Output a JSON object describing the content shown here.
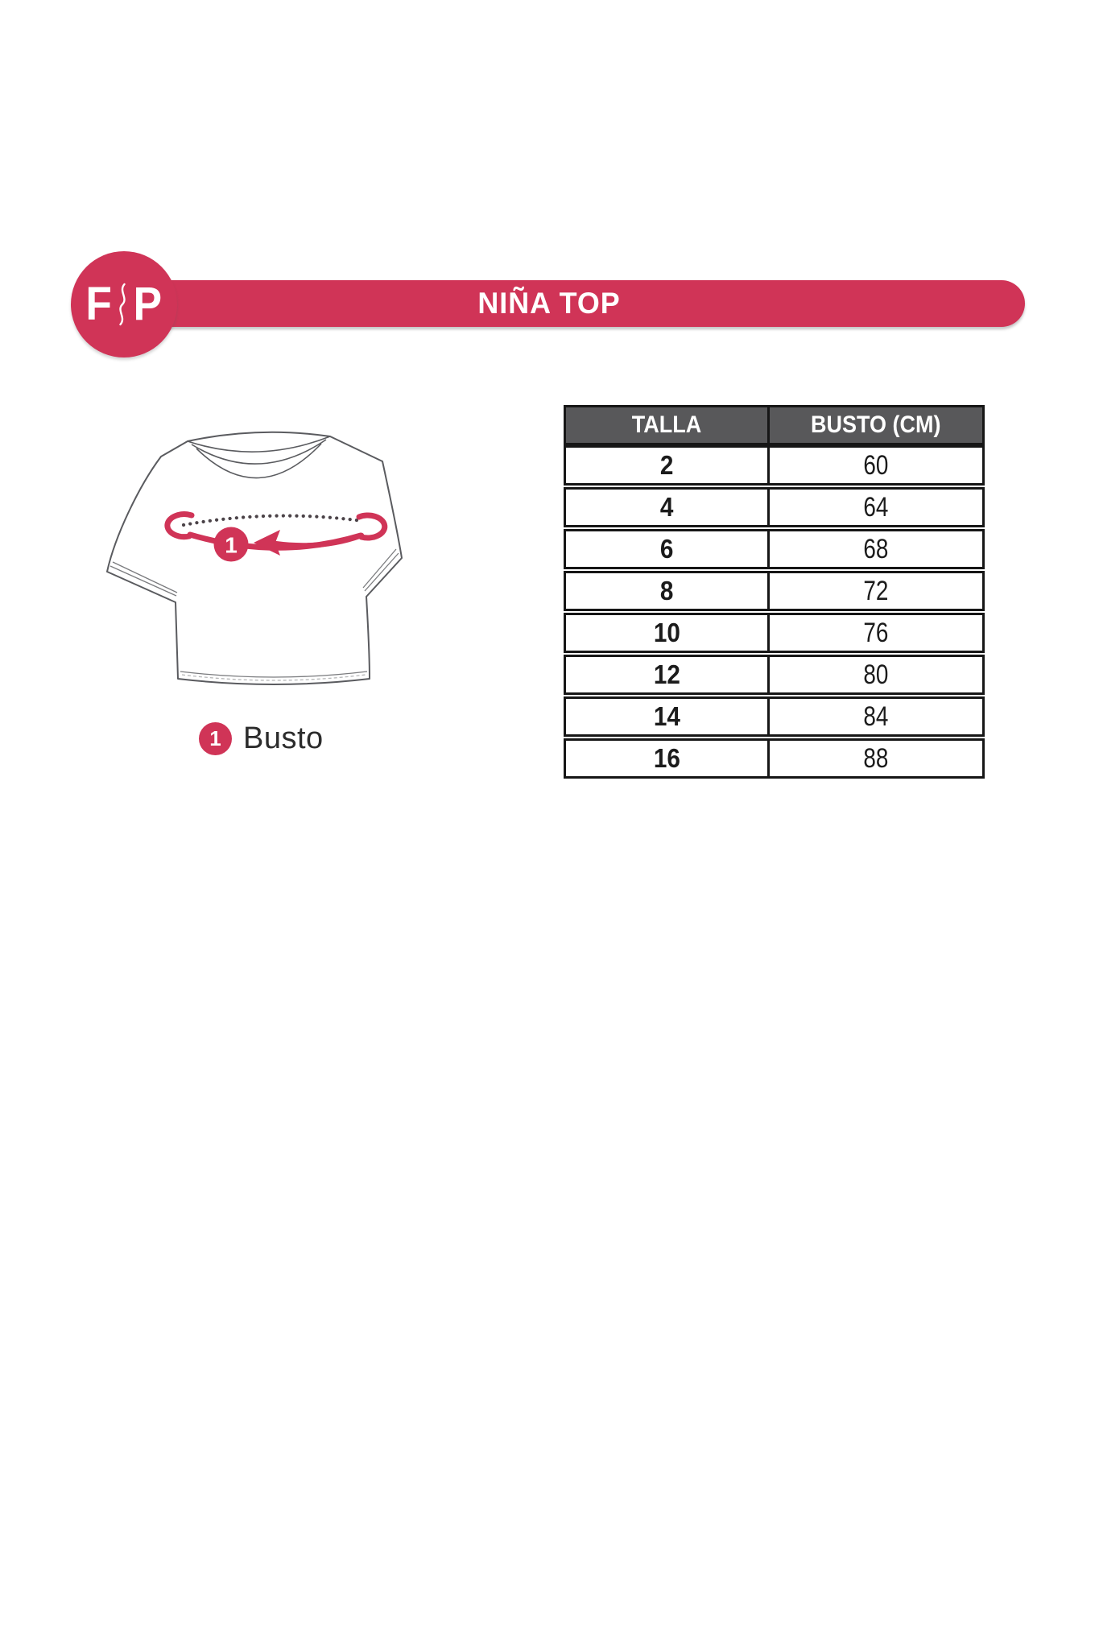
{
  "colors": {
    "accent": "#D03457",
    "table_header_bg": "#58585A",
    "table_border": "#161616",
    "shirt_outline": "#5A5B5F",
    "tape_dot_color": "#4B4348",
    "text_dark": "#1B1B1B"
  },
  "logo": {
    "letter_left": "F",
    "letter_right": "P"
  },
  "banner": {
    "title": "NIÑA TOP"
  },
  "diagram": {
    "marker_number": "1",
    "legend_number": "1",
    "legend_label": "Busto"
  },
  "size_table": {
    "columns": [
      "TALLA",
      "BUSTO (CM)"
    ],
    "rows": [
      [
        "2",
        "60"
      ],
      [
        "4",
        "64"
      ],
      [
        "6",
        "68"
      ],
      [
        "8",
        "72"
      ],
      [
        "10",
        "76"
      ],
      [
        "12",
        "80"
      ],
      [
        "14",
        "84"
      ],
      [
        "16",
        "88"
      ]
    ]
  }
}
